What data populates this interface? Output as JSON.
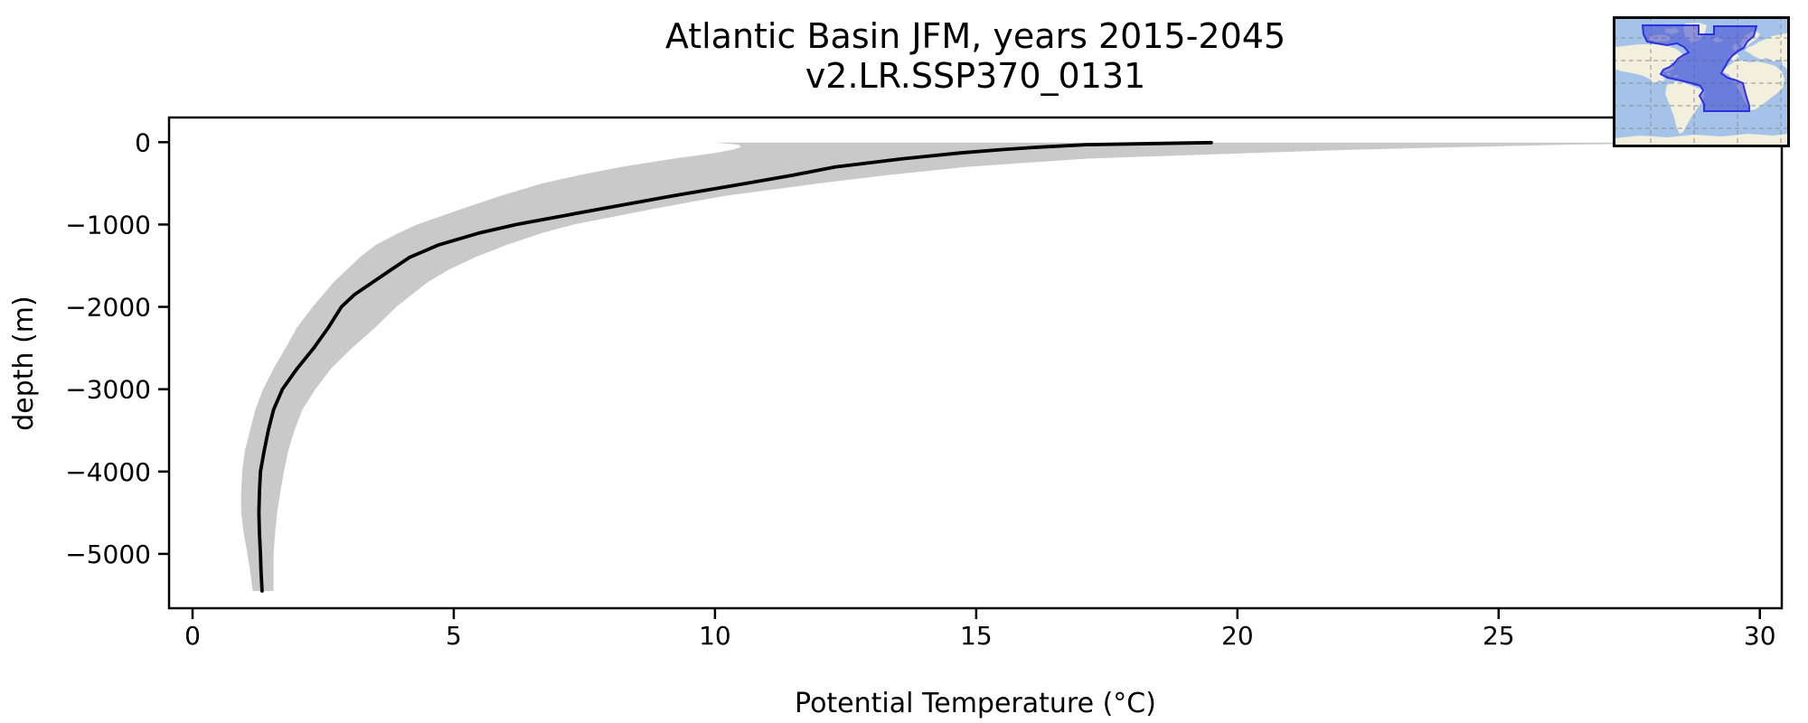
{
  "title": {
    "line1": "Atlantic Basin JFM, years 2015-2045",
    "line2": "v2.LR.SSP370_0131"
  },
  "chart_data": {
    "type": "line",
    "title": "Atlantic Basin JFM, years 2015-2045",
    "subtitle": "v2.LR.SSP370_0131",
    "xlabel": "Potential Temperature (°C)",
    "ylabel": "depth (m)",
    "xlim": [
      -0.45,
      30.42
    ],
    "ylim": [
      -5660,
      300
    ],
    "x_ticks": [
      0,
      5,
      10,
      15,
      20,
      25,
      30
    ],
    "y_ticks": [
      0,
      -1000,
      -2000,
      -3000,
      -4000,
      -5000
    ],
    "grid": false,
    "legend": "none",
    "colors": {
      "mean_line": "#000000",
      "spread_band": "#c9c9c9",
      "axes": "#000000"
    },
    "depth_m": [
      -5,
      -30,
      -60,
      -90,
      -130,
      -200,
      -300,
      -400,
      -500,
      -650,
      -800,
      -1000,
      -1100,
      -1250,
      -1400,
      -1550,
      -1700,
      -1850,
      -2000,
      -2250,
      -2500,
      -2750,
      -3000,
      -3250,
      -3500,
      -3750,
      -4000,
      -4250,
      -4500,
      -4750,
      -5000,
      -5200,
      -5450
    ],
    "series": [
      {
        "name": "mean potential temperature",
        "kind": "line",
        "values": [
          19.5,
          17.1,
          16.2,
          15.5,
          14.7,
          13.6,
          12.3,
          11.5,
          10.6,
          9.2,
          7.9,
          6.2,
          5.5,
          4.7,
          4.15,
          3.8,
          3.45,
          3.1,
          2.85,
          2.6,
          2.32,
          2.0,
          1.72,
          1.55,
          1.45,
          1.37,
          1.3,
          1.28,
          1.27,
          1.28,
          1.3,
          1.31,
          1.33
        ]
      },
      {
        "name": "ensemble spread min",
        "kind": "band-lower",
        "values": [
          10.0,
          10.45,
          10.5,
          10.35,
          10.0,
          9.2,
          8.2,
          7.4,
          6.7,
          5.9,
          5.2,
          4.3,
          3.95,
          3.5,
          3.2,
          2.95,
          2.7,
          2.5,
          2.3,
          2.0,
          1.78,
          1.55,
          1.35,
          1.2,
          1.1,
          1.0,
          0.95,
          0.93,
          0.93,
          0.98,
          1.05,
          1.1,
          1.15
        ]
      },
      {
        "name": "ensemble spread max",
        "kind": "band-upper",
        "values": [
          29.5,
          26.3,
          24.3,
          22.3,
          20.3,
          17.1,
          14.8,
          13.3,
          12.0,
          10.2,
          8.9,
          7.3,
          6.7,
          6.0,
          5.4,
          4.9,
          4.5,
          4.2,
          3.9,
          3.5,
          3.05,
          2.65,
          2.35,
          2.1,
          1.95,
          1.83,
          1.75,
          1.68,
          1.62,
          1.58,
          1.55,
          1.55,
          1.55
        ]
      }
    ]
  },
  "inset_map": {
    "name": "Atlantic basin region map",
    "highlighted_region": "Atlantic Basin",
    "colors": {
      "ocean": "#a5c3e8",
      "land": "#f2efdc",
      "region_fill": "#3a44cf",
      "region_stroke": "#2424e0",
      "gridline": "#8a8a8a",
      "border": "#000000"
    }
  }
}
